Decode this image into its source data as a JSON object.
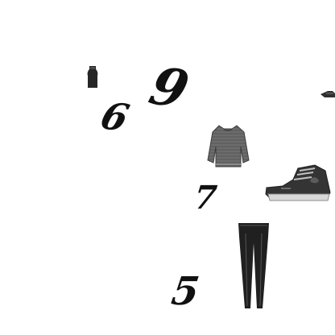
{
  "scene": {
    "background": "#ffffff",
    "items": [
      {
        "kind": "icon",
        "name": "sleeveless-top-icon"
      },
      {
        "kind": "digit",
        "value": "9"
      },
      {
        "kind": "digit",
        "value": "6"
      },
      {
        "kind": "icon",
        "name": "cropped-item-icon"
      },
      {
        "kind": "icon",
        "name": "sweater-icon"
      },
      {
        "kind": "digit",
        "value": "7"
      },
      {
        "kind": "icon",
        "name": "sneaker-icon"
      },
      {
        "kind": "icon",
        "name": "leggings-icon"
      },
      {
        "kind": "digit",
        "value": "5"
      }
    ],
    "digits": {
      "nine": "9",
      "six": "6",
      "seven": "7",
      "five": "5"
    }
  }
}
